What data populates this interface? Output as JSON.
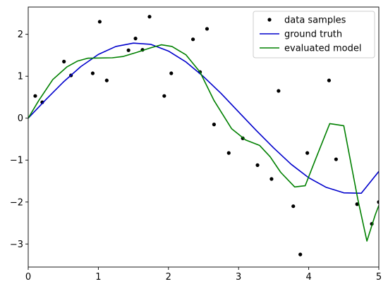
{
  "chart_data": {
    "type": "line",
    "title": "",
    "xlabel": "",
    "ylabel": "",
    "xlim": [
      0,
      5
    ],
    "ylim": [
      -3.55,
      2.65
    ],
    "xticks": [
      0,
      1,
      2,
      3,
      4,
      5
    ],
    "yticks": [
      -3,
      -2,
      -1,
      0,
      1,
      2
    ],
    "legend": {
      "placement": "top-right"
    },
    "grid": false,
    "series": [
      {
        "name": "data samples",
        "kind": "scatter",
        "color": "#000000",
        "points": [
          [
            0.1,
            0.53
          ],
          [
            0.2,
            0.38
          ],
          [
            0.51,
            1.35
          ],
          [
            0.61,
            1.02
          ],
          [
            0.92,
            1.07
          ],
          [
            1.02,
            2.3
          ],
          [
            1.12,
            0.9
          ],
          [
            1.43,
            1.62
          ],
          [
            1.53,
            1.9
          ],
          [
            1.63,
            1.63
          ],
          [
            1.73,
            2.42
          ],
          [
            1.94,
            0.53
          ],
          [
            2.04,
            1.07
          ],
          [
            2.35,
            1.88
          ],
          [
            2.45,
            1.1
          ],
          [
            2.55,
            2.13
          ],
          [
            2.65,
            -0.15
          ],
          [
            2.86,
            -0.83
          ],
          [
            3.06,
            -0.48
          ],
          [
            3.27,
            -1.12
          ],
          [
            3.47,
            -1.45
          ],
          [
            3.57,
            0.65
          ],
          [
            3.78,
            -2.1
          ],
          [
            3.88,
            -3.25
          ],
          [
            3.98,
            -0.83
          ],
          [
            4.29,
            0.9
          ],
          [
            4.39,
            -0.98
          ],
          [
            4.69,
            -2.05
          ],
          [
            4.9,
            -2.52
          ],
          [
            5.0,
            -2.0
          ]
        ]
      },
      {
        "name": "ground truth",
        "kind": "line",
        "color": "#0000cc",
        "points": [
          [
            0.0,
            0.0
          ],
          [
            0.25,
            0.44
          ],
          [
            0.5,
            0.86
          ],
          [
            0.75,
            1.23
          ],
          [
            1.0,
            1.52
          ],
          [
            1.25,
            1.71
          ],
          [
            1.5,
            1.79
          ],
          [
            1.75,
            1.76
          ],
          [
            2.0,
            1.6
          ],
          [
            2.25,
            1.34
          ],
          [
            2.5,
            0.99
          ],
          [
            2.75,
            0.59
          ],
          [
            3.0,
            0.15
          ],
          [
            3.25,
            -0.29
          ],
          [
            3.5,
            -0.71
          ],
          [
            3.75,
            -1.1
          ],
          [
            4.0,
            -1.42
          ],
          [
            4.25,
            -1.65
          ],
          [
            4.5,
            -1.78
          ],
          [
            4.75,
            -1.79
          ],
          [
            5.0,
            -1.27
          ]
        ]
      },
      {
        "name": "evaluated model",
        "kind": "line",
        "color": "#008000",
        "points": [
          [
            0.0,
            0.0
          ],
          [
            0.15,
            0.42
          ],
          [
            0.35,
            0.92
          ],
          [
            0.55,
            1.22
          ],
          [
            0.7,
            1.36
          ],
          [
            0.85,
            1.43
          ],
          [
            1.2,
            1.44
          ],
          [
            1.35,
            1.47
          ],
          [
            1.55,
            1.57
          ],
          [
            1.75,
            1.68
          ],
          [
            1.9,
            1.75
          ],
          [
            2.05,
            1.71
          ],
          [
            2.25,
            1.51
          ],
          [
            2.45,
            1.1
          ],
          [
            2.65,
            0.42
          ],
          [
            2.9,
            -0.25
          ],
          [
            3.1,
            -0.52
          ],
          [
            3.3,
            -0.65
          ],
          [
            3.45,
            -0.92
          ],
          [
            3.6,
            -1.29
          ],
          [
            3.8,
            -1.64
          ],
          [
            3.95,
            -1.61
          ],
          [
            4.1,
            -0.97
          ],
          [
            4.3,
            -0.13
          ],
          [
            4.5,
            -0.18
          ],
          [
            4.7,
            -1.93
          ],
          [
            4.83,
            -2.93
          ],
          [
            4.95,
            -2.3
          ],
          [
            5.0,
            -2.08
          ]
        ]
      }
    ]
  }
}
